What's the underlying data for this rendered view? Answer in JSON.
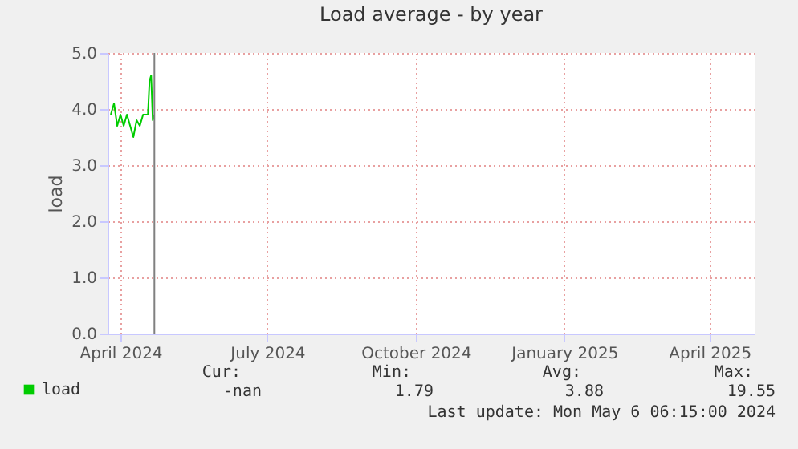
{
  "chart_data": {
    "type": "line",
    "title": "Load average - by year",
    "ylabel": "load",
    "x": [
      "2024-04-09",
      "2024-04-11",
      "2024-04-13",
      "2024-04-15",
      "2024-04-17",
      "2024-04-19",
      "2024-04-21",
      "2024-04-23",
      "2024-04-25",
      "2024-04-27",
      "2024-04-29",
      "2024-05-01",
      "2024-05-02",
      "2024-05-03",
      "2024-05-04",
      "2024-05-05",
      "2024-05-06"
    ],
    "series": [
      {
        "name": "load",
        "color": "#00cc00",
        "values": [
          3.9,
          4.1,
          3.7,
          3.9,
          3.7,
          3.9,
          3.7,
          3.5,
          3.8,
          3.7,
          3.9,
          3.9,
          3.9,
          4.5,
          4.6,
          3.8,
          3.9
        ]
      }
    ],
    "xlim": [
      "2024-04-07",
      "2025-05-13"
    ],
    "xticks": [
      {
        "value": "2024-04-15",
        "label": "April 2024"
      },
      {
        "value": "2024-07-15",
        "label": "July 2024"
      },
      {
        "value": "2024-10-15",
        "label": "October 2024"
      },
      {
        "value": "2025-01-15",
        "label": "January 2025"
      },
      {
        "value": "2025-04-15",
        "label": "April 2025"
      }
    ],
    "ylim": [
      0,
      5
    ],
    "yticks": [
      {
        "value": 0,
        "label": "0.0"
      },
      {
        "value": 1,
        "label": "1.0"
      },
      {
        "value": 2,
        "label": "2.0"
      },
      {
        "value": 3,
        "label": "3.0"
      },
      {
        "value": 4,
        "label": "4.0"
      },
      {
        "value": 5,
        "label": "5.0"
      }
    ],
    "ref_lines": [
      {
        "axis": "x",
        "value": "2024-05-06",
        "color": "#808080"
      }
    ],
    "grid": true,
    "legend": "bottom left",
    "marker": "none",
    "line_style": "solid",
    "annotations": [
      "Cur:",
      "Min:",
      "Avg:",
      "Max:",
      "-nan",
      "1.79",
      "3.88",
      "19.55",
      "Last update: Mon May  6 06:15:00 2024"
    ]
  }
}
